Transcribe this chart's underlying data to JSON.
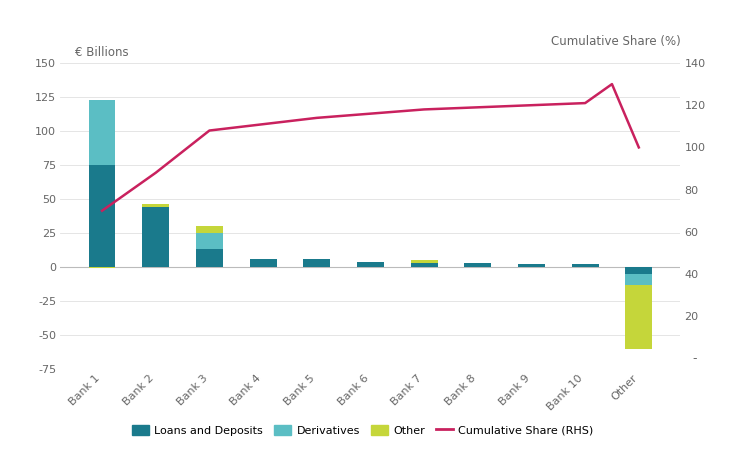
{
  "banks": [
    "Bank 1",
    "Bank 2",
    "Bank 3",
    "Bank 4",
    "Bank 5",
    "Bank 6",
    "Bank 7",
    "Bank 8",
    "Bank 9",
    "Bank 10",
    "Other"
  ],
  "loans_deposits": [
    75,
    44,
    13,
    6,
    6,
    4,
    3,
    3,
    2,
    2,
    -5
  ],
  "derivatives": [
    48,
    0,
    12,
    0,
    0,
    0,
    0,
    0,
    0,
    0,
    -8
  ],
  "other_vals": [
    -1,
    2,
    5,
    0,
    0,
    0,
    2,
    0,
    0,
    0,
    -47
  ],
  "cumulative_share_y": [
    70,
    88,
    108,
    111,
    114,
    116,
    118,
    119,
    120,
    121,
    130,
    100
  ],
  "cumulative_share_x": [
    0,
    1,
    2,
    3,
    4,
    5,
    6,
    7,
    8,
    9,
    9.5,
    10
  ],
  "colors": {
    "loans_deposits": "#1a7a8c",
    "derivatives": "#5bbec4",
    "other": "#c5d63a",
    "cumulative_share_line": "#c9215e"
  },
  "ylabel_left": "€ Billions",
  "ylabel_right": "Cumulative Share (%)",
  "ylim_left": [
    -75,
    150
  ],
  "ylim_right": [
    -5,
    140
  ],
  "yticks_left": [
    -75,
    -50,
    -25,
    0,
    25,
    50,
    75,
    100,
    125,
    150
  ],
  "yticks_right": [
    20,
    40,
    60,
    80,
    100,
    120,
    140
  ],
  "right_tick_labels": [
    "20",
    "40",
    "60",
    "80",
    "100",
    "120",
    "140"
  ],
  "right_bottom_dash": "-",
  "background_color": "#ffffff",
  "legend_labels": [
    "Loans and Deposits",
    "Derivatives",
    "Other",
    "Cumulative Share (RHS)"
  ]
}
